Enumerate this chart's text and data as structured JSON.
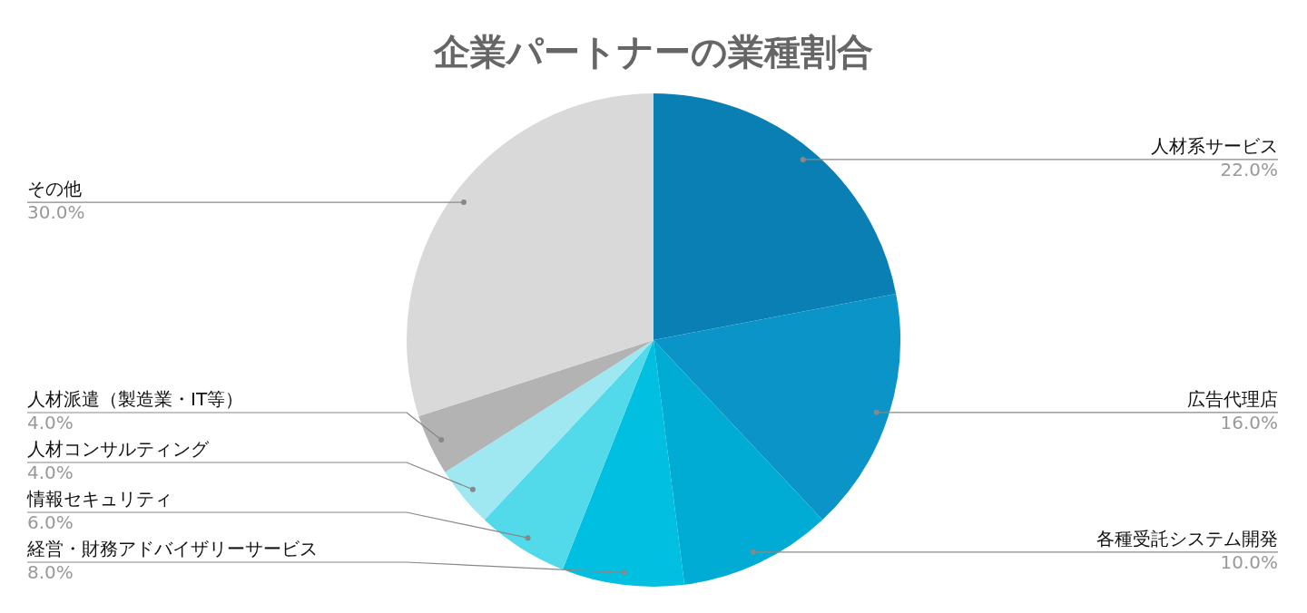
{
  "chart_data": {
    "type": "pie",
    "title": "企業パートナーの業種割合",
    "categories": [
      "人材系サービス",
      "広告代理店",
      "各種受託システム開発",
      "経営・財務アドバイザリーサービス",
      "情報セキュリティ",
      "人材コンサルティング",
      "人材派遣（製造業・IT等）",
      "その他"
    ],
    "values": [
      22,
      16,
      10,
      8,
      6,
      4,
      4,
      30
    ],
    "value_labels": [
      "22.0%",
      "16.0%",
      "10.0%",
      "8.0%",
      "6.0%",
      "4.0%",
      "4.0%",
      "30.0%"
    ],
    "colors": [
      "#0a7fb4",
      "#0b94c7",
      "#00acd3",
      "#00bfe0",
      "#52d9ea",
      "#9fe7f1",
      "#b3b3b3",
      "#d9d9d9"
    ],
    "legend": false
  }
}
